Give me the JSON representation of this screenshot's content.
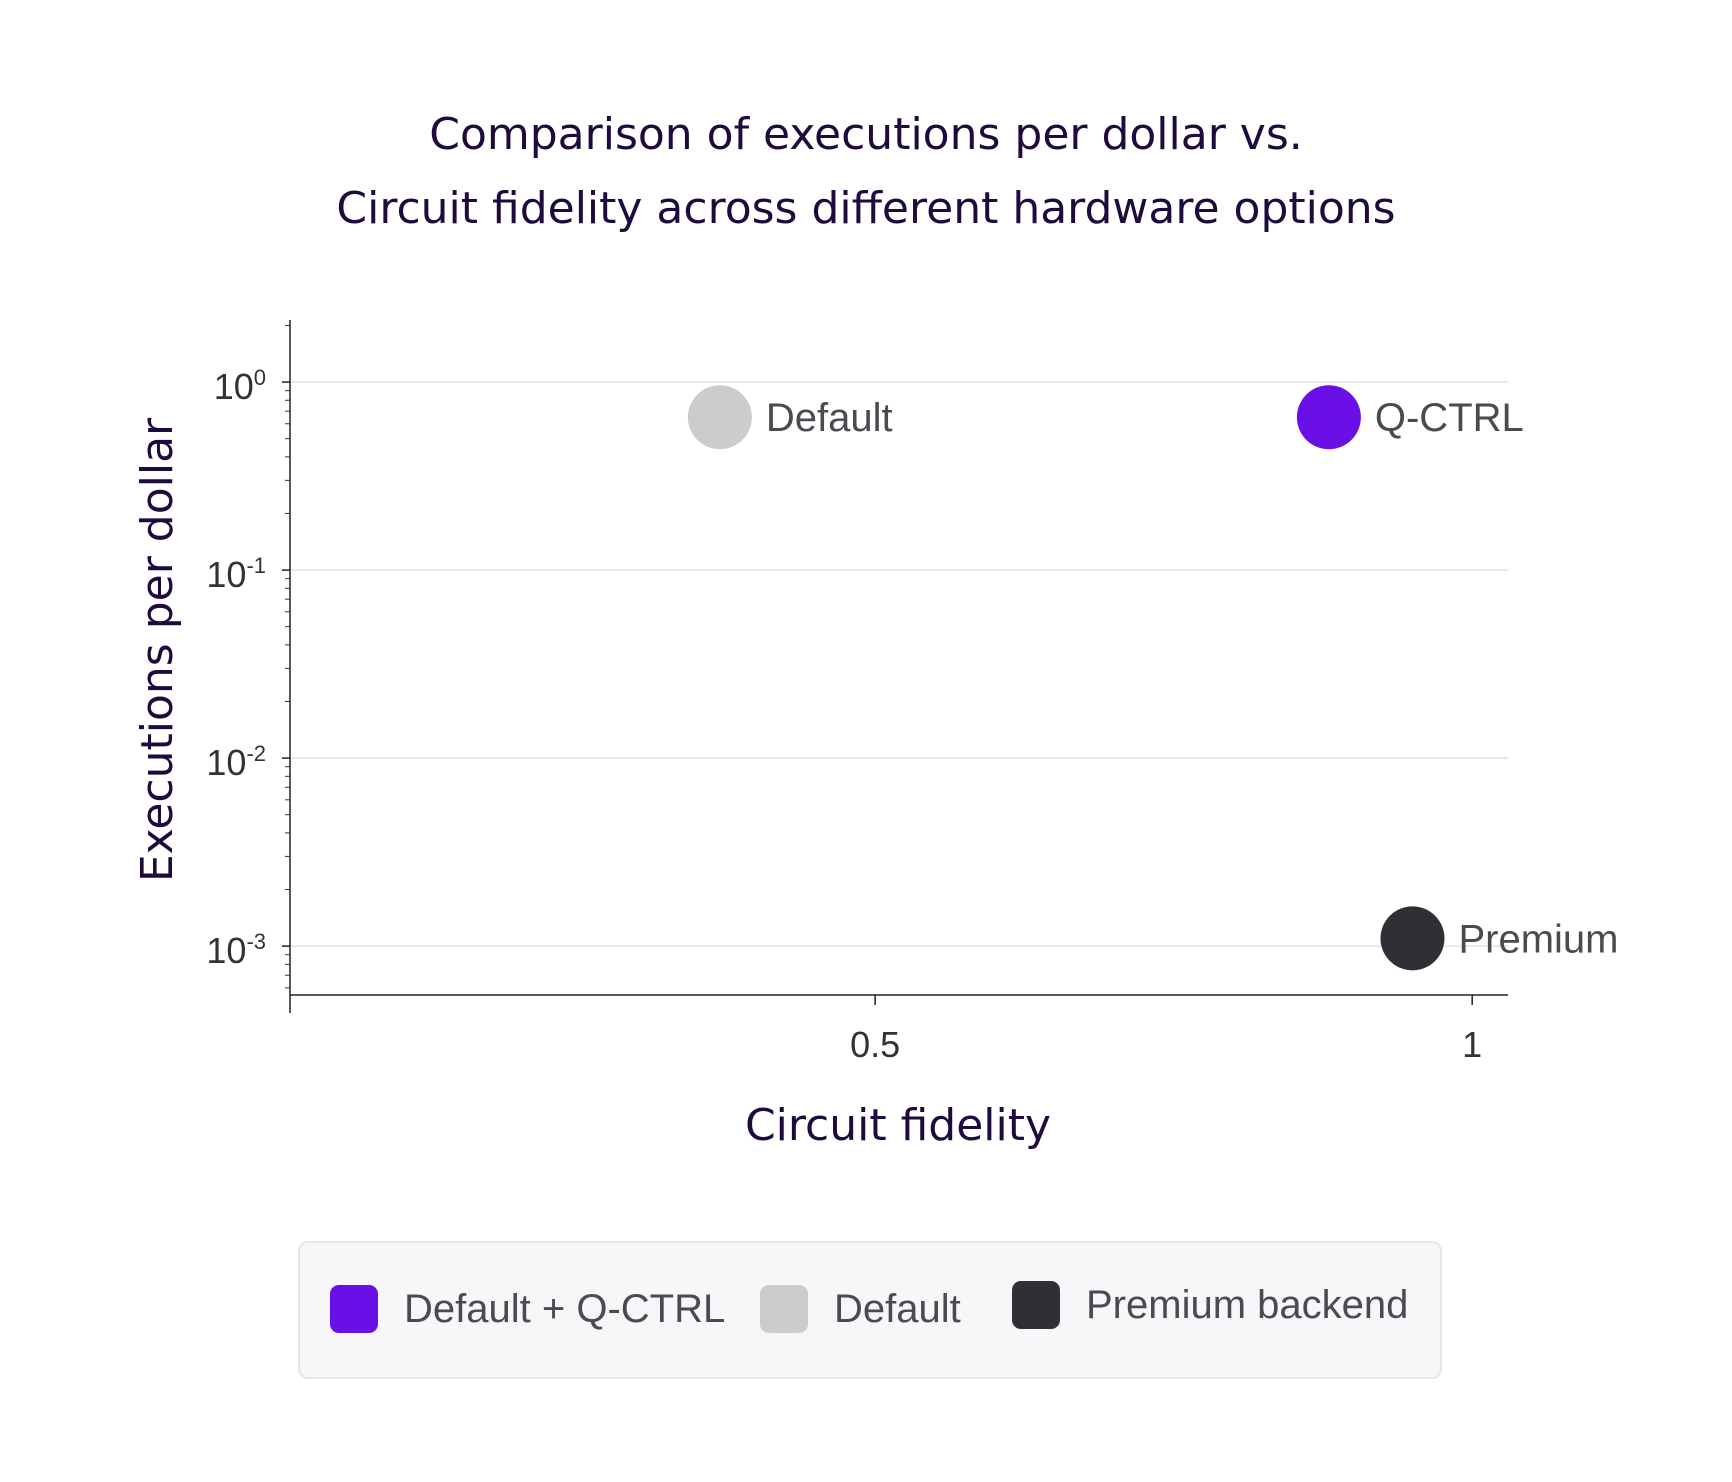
{
  "title_lines": [
    "Comparison of executions per dollar vs.",
    "Circuit fidelity across different hardware options"
  ],
  "legend": [
    {
      "label": "Default + Q-CTRL",
      "color": "#6a0fe6"
    },
    {
      "label": "Default",
      "color": "#cccccf"
    },
    {
      "label": "Premium backend",
      "color": "#2f2f36"
    }
  ],
  "chart_data": {
    "type": "scatter",
    "title": "Comparison of executions per dollar vs. Circuit fidelity across different hardware options",
    "xlabel": "Circuit fidelity",
    "ylabel": "Executions per dollar",
    "xlim": [
      0.01,
      1.03
    ],
    "ylim_log10": [
      -3.26,
      0.33
    ],
    "yscale": "log",
    "grid": "horizontal at major y ticks",
    "x_ticks": [
      {
        "value": 0.5,
        "label": "0.5"
      },
      {
        "value": 1,
        "label": "1"
      }
    ],
    "y_ticks": [
      {
        "exp": 0,
        "base": "10",
        "sup": "0"
      },
      {
        "exp": -1,
        "base": "10",
        "sup": "-1"
      },
      {
        "exp": -2,
        "base": "10",
        "sup": "-2"
      },
      {
        "exp": -3,
        "base": "10",
        "sup": "-3"
      }
    ],
    "points": [
      {
        "series": "Default",
        "label": "Default",
        "x": 0.37,
        "y": 0.65,
        "color": "#cccccf"
      },
      {
        "series": "Default + Q-CTRL",
        "label": "Q-CTRL",
        "x": 0.88,
        "y": 0.65,
        "color": "#6a0fe6"
      },
      {
        "series": "Premium backend",
        "label": "Premium",
        "x": 0.95,
        "y": 0.0011,
        "color": "#2f2f36"
      }
    ]
  }
}
